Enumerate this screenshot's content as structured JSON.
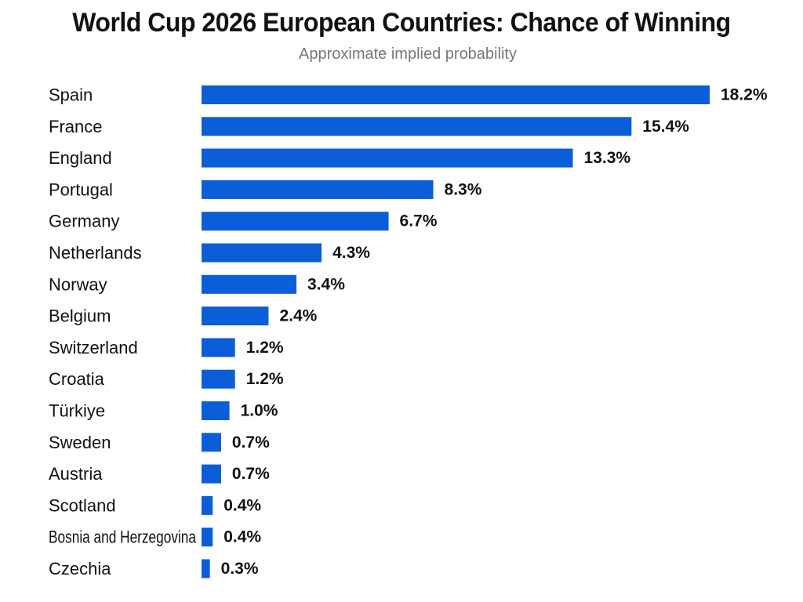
{
  "chart_data": {
    "type": "bar",
    "orientation": "horizontal",
    "title": "World Cup 2026 European Countries: Chance of Winning",
    "subtitle": "Approximate implied probability",
    "xlabel": "",
    "ylabel": "",
    "grid": false,
    "legend": "none",
    "bar_color": "#0B5ED7",
    "unit_suffix": "%",
    "xlim": [
      0,
      18.2
    ],
    "categories": [
      "Spain",
      "France",
      "England",
      "Portugal",
      "Germany",
      "Netherlands",
      "Norway",
      "Belgium",
      "Switzerland",
      "Croatia",
      "Türkiye",
      "Sweden",
      "Austria",
      "Scotland",
      "Bosnia and Herzegovina",
      "Czechia"
    ],
    "values": [
      18.2,
      15.4,
      13.3,
      8.3,
      6.7,
      4.3,
      3.4,
      2.4,
      1.2,
      1.2,
      1.0,
      0.7,
      0.7,
      0.4,
      0.4,
      0.3
    ],
    "value_labels": [
      "18.2%",
      "15.4%",
      "13.3%",
      "8.3%",
      "6.7%",
      "4.3%",
      "3.4%",
      "2.4%",
      "1.2%",
      "1.2%",
      "1.0%",
      "0.7%",
      "0.7%",
      "0.4%",
      "0.4%",
      "0.3%"
    ]
  }
}
